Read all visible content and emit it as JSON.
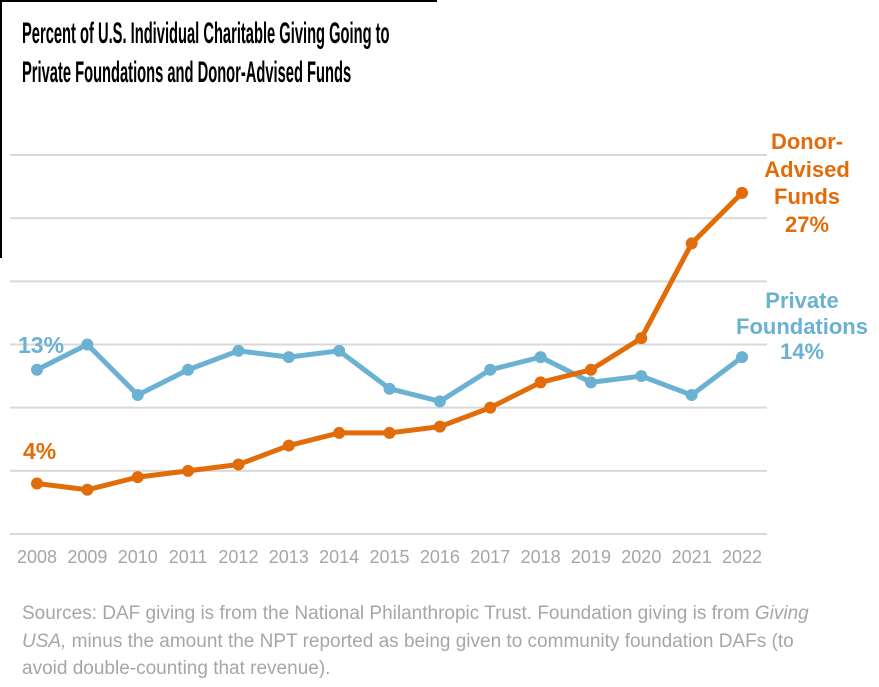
{
  "title": {
    "line1": "Percent of U.S. Individual Charitable Giving Going to",
    "line2": "Private Foundations and Donor-Advised Funds"
  },
  "chart_data": {
    "type": "line",
    "title": "Percent of U.S. Individual Charitable Giving Going to Private Foundations and Donor-Advised Funds",
    "xlabel": "",
    "ylabel": "",
    "x": [
      2008,
      2009,
      2010,
      2011,
      2012,
      2013,
      2014,
      2015,
      2016,
      2017,
      2018,
      2019,
      2020,
      2021,
      2022
    ],
    "series": [
      {
        "name": "Donor-Advised Funds",
        "color": "#E36C0A",
        "values": [
          4,
          3.5,
          4.5,
          5,
          5.5,
          7,
          8,
          8,
          8.5,
          10,
          12,
          13,
          15.5,
          23,
          27
        ]
      },
      {
        "name": "Private Foundations",
        "color": "#6BB1D2",
        "values": [
          13,
          15,
          11,
          13,
          14.5,
          14,
          14.5,
          11.5,
          10.5,
          13,
          14,
          12,
          12.5,
          11,
          14
        ]
      }
    ],
    "ylim": [
      0,
      32
    ],
    "gridlines_percent": [
      0,
      5,
      10,
      15,
      20,
      25,
      30
    ],
    "grid": "on",
    "grid_color": "#D9D9D9",
    "tick_color": "#A6A6A6",
    "legend_position": "inline end-of-line labels",
    "annotations": {
      "daf_start": "4%",
      "pf_start": "13%",
      "daf_label_lines": [
        "Donor-",
        "Advised",
        "Funds",
        "27%"
      ],
      "pf_label_lines": [
        "Private",
        "Foundations",
        "14%"
      ]
    }
  },
  "footer": {
    "lines": [
      [
        {
          "t": "Sources: DAF giving is from the National Philanthropic Trust. Foundation giving is from "
        },
        {
          "t": "Giving",
          "i": true
        }
      ],
      [
        {
          "t": "USA,",
          "i": true
        },
        {
          "t": " minus the amount the NPT reported as being given to community foundation DAFs (to"
        }
      ],
      [
        {
          "t": "avoid double-counting that revenue)."
        }
      ]
    ]
  }
}
